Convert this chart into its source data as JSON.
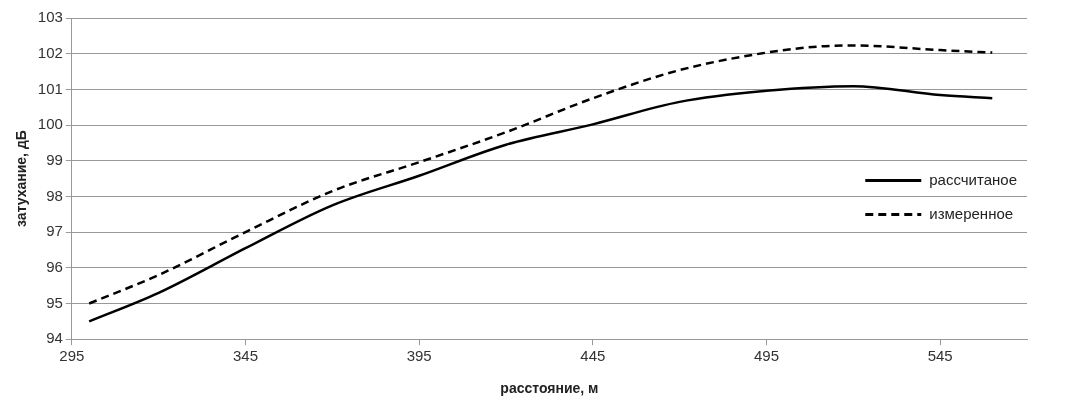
{
  "chart_data": {
    "type": "line",
    "xlabel": "расстояние, м",
    "ylabel": "затухание, дБ",
    "xlim": [
      295,
      570
    ],
    "xticks": [
      295,
      345,
      395,
      445,
      495,
      545
    ],
    "ylim": [
      94,
      103
    ],
    "yticks": [
      94,
      95,
      96,
      97,
      98,
      99,
      100,
      101,
      102,
      103
    ],
    "grid": "y",
    "legend": "right",
    "marker": "none",
    "series": [
      {
        "name": "рассчитаное",
        "color": "#000000",
        "line_style": "solid",
        "x": [
          300,
          320,
          345,
          370,
          395,
          420,
          445,
          470,
          495,
          520,
          545,
          560
        ],
        "values": [
          94.5,
          95.3,
          96.55,
          97.75,
          98.58,
          99.45,
          100.02,
          100.65,
          100.96,
          101.09,
          100.84,
          100.75
        ]
      },
      {
        "name": "измеренное",
        "color": "#000000",
        "line_style": "dashed",
        "x": [
          300,
          320,
          345,
          370,
          395,
          420,
          445,
          470,
          495,
          510,
          520,
          545,
          560
        ],
        "values": [
          95.0,
          95.8,
          97.0,
          98.15,
          98.96,
          99.8,
          100.75,
          101.54,
          102.03,
          102.2,
          102.23,
          102.1,
          102.03
        ]
      }
    ]
  }
}
